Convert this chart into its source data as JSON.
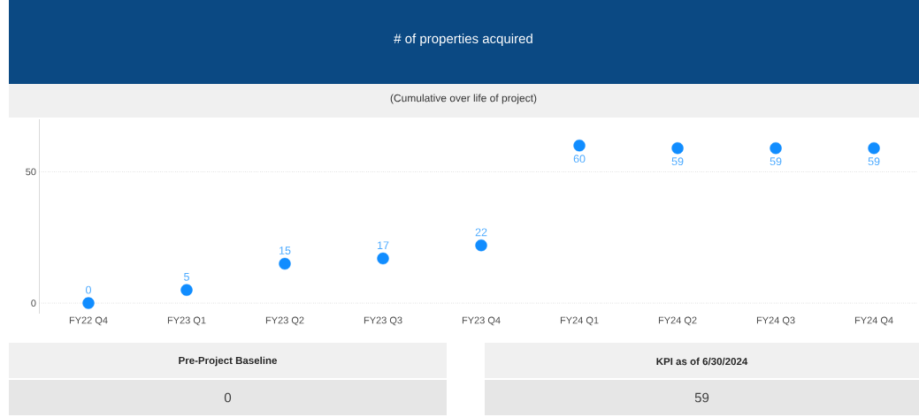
{
  "chart_data": [
    {
      "type": "scatter",
      "title": "# of properties acquired",
      "subtitle": "(Cumulative over life of project)",
      "categories": [
        "FY22 Q4",
        "FY23 Q1",
        "FY23 Q2",
        "FY23 Q3",
        "FY23 Q4",
        "FY24 Q1",
        "FY24 Q2",
        "FY24 Q3",
        "FY24 Q4"
      ],
      "values": [
        0,
        5,
        15,
        17,
        22,
        60,
        59,
        59,
        59
      ],
      "color": "#118dff",
      "marker": "circle",
      "data_labels": true,
      "grid": "y",
      "ylim": [
        -4,
        70
      ],
      "yticks": [
        0,
        50
      ]
    },
    {
      "type": "other",
      "title": "Pre-Project Baseline",
      "annotations": [
        "0"
      ]
    },
    {
      "type": "other",
      "title": "KPI as of 6/30/2024",
      "annotations": [
        "59"
      ]
    }
  ]
}
